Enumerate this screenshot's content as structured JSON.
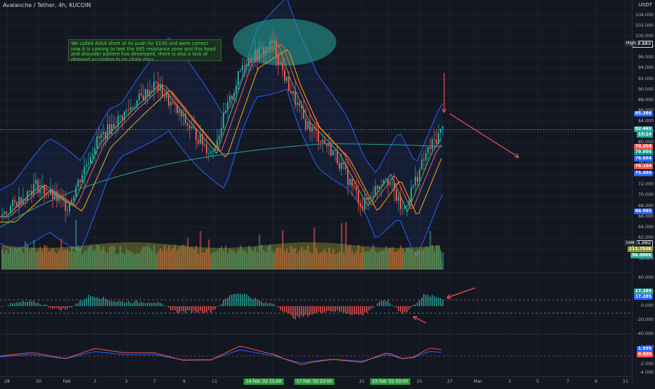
{
  "header": {
    "title": "Avalanche / Tether, 4h, KUCOIN",
    "currency": "USDT"
  },
  "annotation": {
    "text": "We called AVAX short at its push for $100 and were correct now it is coming to test the $85 resistance zone and this head and shoulder pattern has developed, there is also a lack of demand according to on chain data"
  },
  "colors": {
    "background": "#131722",
    "up": "#26a69a",
    "down": "#ef5350",
    "accent": "#ef5350",
    "annotation_text": "#59d35a",
    "bollinger": "#2962ff",
    "ellipse": "#26a69a"
  },
  "price_axis": {
    "labels": [
      "104.000",
      "102.000",
      "100.000",
      "98.000",
      "96.000",
      "94.000",
      "92.000",
      "90.000",
      "88.000",
      "86.000",
      "84.000",
      "82.000",
      "80.000",
      "78.000",
      "76.000",
      "74.000",
      "72.000",
      "70.000",
      "68.000",
      "66.000",
      "64.000",
      "62.000",
      "60.000",
      "58.000"
    ],
    "tags": [
      {
        "text": "98.683",
        "color": "#131722",
        "bold": true
      },
      {
        "text": "85.386",
        "color": "#2962ff"
      },
      {
        "text": "82.465",
        "color": "#26a69a"
      },
      {
        "text": "15:24",
        "color": "#26a69a"
      },
      {
        "text": "79.258",
        "color": "#ef5350"
      },
      {
        "text": "79.000",
        "color": "#089981"
      },
      {
        "text": "76.664",
        "color": "#2962ff"
      },
      {
        "text": "76.164",
        "color": "#ef5350"
      },
      {
        "text": "75.490",
        "color": "#2962ff"
      },
      {
        "text": "66.965",
        "color": "#2962ff"
      },
      {
        "text": "61.092",
        "color": "#131722"
      },
      {
        "text": "111.753K",
        "color": "#8a9a2a"
      },
      {
        "text": "96.086K",
        "color": "#26a69a"
      }
    ],
    "high_label": "High",
    "low_label": "Low"
  },
  "macd_axis": {
    "labels": [
      "40.000",
      "20.000",
      "0.000",
      "-20.000",
      "-40.000"
    ],
    "tags": [
      {
        "text": "17.285",
        "color": "#26a69a"
      },
      {
        "text": "17.285",
        "color": "#2962ff"
      }
    ]
  },
  "osc_axis": {
    "labels": [
      "2.000",
      "0.000",
      "-2.000",
      "-4.000"
    ],
    "tags": [
      {
        "text": "1.595",
        "color": "#2962ff"
      },
      {
        "text": "0.909",
        "color": "#ef5350"
      }
    ]
  },
  "time_axis": {
    "labels": [
      "28",
      "30",
      "Feb",
      "3",
      "5",
      "7",
      "9",
      "11",
      "16",
      "21",
      "25",
      "27",
      "Mar",
      "3",
      "5",
      "7",
      "9",
      "11"
    ],
    "highlights": [
      "14 Feb '22  11:00",
      "17 Feb '22  23:00",
      "23 Feb '22  03:00"
    ]
  },
  "chart_data": {
    "type": "candlestick",
    "title": "",
    "xlabel": "",
    "ylabel": "",
    "ylim": [
      57,
      105
    ],
    "series_key": [
      {
        "date": "Jan 28",
        "price": 66
      },
      {
        "date": "Feb 1",
        "price": 72
      },
      {
        "date": "Feb 3",
        "price": 68
      },
      {
        "date": "Feb 5",
        "price": 80
      },
      {
        "date": "Feb 7",
        "price": 86
      },
      {
        "date": "Feb 9",
        "price": 91
      },
      {
        "date": "Feb 11",
        "price": 84
      },
      {
        "date": "Feb 13",
        "price": 78
      },
      {
        "date": "Feb 15",
        "price": 95
      },
      {
        "date": "Feb 16",
        "price": 98.7
      },
      {
        "date": "Feb 17",
        "price": 92
      },
      {
        "date": "Feb 19",
        "price": 84
      },
      {
        "date": "Feb 21",
        "price": 78
      },
      {
        "date": "Feb 22",
        "price": 68
      },
      {
        "date": "Feb 23",
        "price": 74
      },
      {
        "date": "Feb 24",
        "price": 67
      },
      {
        "date": "Feb 25",
        "price": 78
      },
      {
        "date": "Feb 26",
        "price": 82.5
      }
    ],
    "grid": true,
    "legend": "none"
  }
}
